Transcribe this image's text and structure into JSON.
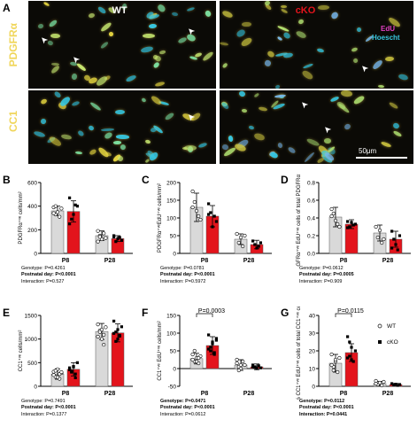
{
  "panel_a": {
    "label": "A",
    "wt_label": "WT",
    "cko_label": "cKO",
    "edu_label": "EdU",
    "hoescht_label": "Hoescht",
    "row1_label": "PDGFRα",
    "row2_label": "CC1",
    "scale_bar": "50μm",
    "colors": {
      "wt": "#ffffff",
      "cko": "#e3141c",
      "edu": "#e040c0",
      "hoescht": "#38c8e0",
      "marker": "#f0d65a"
    }
  },
  "charts": [
    {
      "id": "B",
      "label": "B",
      "ylabel": "PDGFRα⁺ᵛᵉ cells/mm²",
      "yticks": [
        "0",
        "200",
        "400",
        "600"
      ],
      "xlabels": [
        "P8",
        "P28"
      ],
      "stats": [
        {
          "prefix": "Genotype: ",
          "value": "P=0.4261",
          "bold": false
        },
        {
          "prefix": "Postnatal day: ",
          "value": "P<0.0001",
          "bold": true
        },
        {
          "prefix": "Interaction: ",
          "value": "P=0.527",
          "bold": false
        }
      ],
      "comparison": null
    },
    {
      "id": "C",
      "label": "C",
      "ylabel": "PDGFRα⁺ᵛᵉEdU⁺ᵛᵉ cells/mm²",
      "yticks": [
        "0",
        "50",
        "100",
        "150",
        "200"
      ],
      "xlabels": [
        "P8",
        "P28"
      ],
      "stats": [
        {
          "prefix": "Genotype: ",
          "value": "P=0.0781",
          "bold": false
        },
        {
          "prefix": "Postnatal day: ",
          "value": "P<0.0001",
          "bold": true
        },
        {
          "prefix": "Interaction: ",
          "value": "P=0.5972",
          "bold": false
        }
      ],
      "comparison": null
    },
    {
      "id": "D",
      "label": "D",
      "ylabel": "% PDGFRα⁺ᵛᵉ EdU⁺ᵛᵉ cells of total PDGFRα⁺ᵛᵉ cells",
      "yticks": [
        "0.0",
        "0.2",
        "0.4",
        "0.6",
        "0.8"
      ],
      "xlabels": [
        "P8",
        "P28"
      ],
      "stats": [
        {
          "prefix": "Genotype: ",
          "value": "P=0.0612",
          "bold": false
        },
        {
          "prefix": "Postnatal day: ",
          "value": "P=0.0005",
          "bold": true
        },
        {
          "prefix": "Interaction: ",
          "value": "P=0.909",
          "bold": false
        }
      ],
      "comparison": null
    },
    {
      "id": "E",
      "label": "E",
      "ylabel": "CC1⁺ᵛᵉ cells/mm²",
      "yticks": [
        "0",
        "500",
        "1000",
        "1500"
      ],
      "xlabels": [
        "P8",
        "P28"
      ],
      "stats": [
        {
          "prefix": "Genotype: ",
          "value": "P=0.7491",
          "bold": false
        },
        {
          "prefix": "Postnatal day: ",
          "value": "P<0.0001",
          "bold": true
        },
        {
          "prefix": "Interaction: ",
          "value": "P=0.1377",
          "bold": false
        }
      ],
      "comparison": null
    },
    {
      "id": "F",
      "label": "F",
      "ylabel": "CC1⁺ᵛᵉ EdU⁺ᵛᵉ cells/mm²",
      "yticks": [
        "-50",
        "0",
        "50",
        "100",
        "150"
      ],
      "xlabels": [
        "P8",
        "P28"
      ],
      "stats": [
        {
          "prefix": "Genotype: ",
          "value": "P=0.0471",
          "bold": true
        },
        {
          "prefix": "Postnatal day: ",
          "value": "P<0.0001",
          "bold": true
        },
        {
          "prefix": "Interaction: ",
          "value": "P=0.0612",
          "bold": false
        }
      ],
      "comparison": "P=0.0003"
    },
    {
      "id": "G",
      "label": "G",
      "ylabel": "% CC1⁺ᵛᵉ EdU⁺ᵛᵉ cells of total CC1⁺ᵛᵉ cells",
      "yticks": [
        "0",
        "10",
        "20",
        "30",
        "40"
      ],
      "xlabels": [
        "P8",
        "P28"
      ],
      "stats": [
        {
          "prefix": "Genotype: ",
          "value": "P=0.0112",
          "bold": true
        },
        {
          "prefix": "Postnatal day: ",
          "value": "P<0.0001",
          "bold": true
        },
        {
          "prefix": "Interaction: ",
          "value": "P=0.0441",
          "bold": true
        }
      ],
      "comparison": "P=0.0115",
      "legend": [
        "WT",
        "cKO"
      ]
    }
  ],
  "chart_data": [
    {
      "type": "bar",
      "panel": "B",
      "categories": [
        "P8",
        "P28"
      ],
      "ylim": [
        0,
        600
      ],
      "series": [
        {
          "name": "WT",
          "values": [
            360,
            150
          ],
          "errors": [
            40,
            40
          ],
          "points": [
            [
              390,
              330,
              350,
              310,
              380,
              340,
              400
            ],
            [
              190,
              150,
              120,
              170,
              130,
              100,
              140
            ]
          ]
        },
        {
          "name": "cKO",
          "values": [
            355,
            125
          ],
          "errors": [
            90,
            25
          ],
          "points": [
            [
              470,
              290,
              330,
              410,
              400,
              250
            ],
            [
              150,
              100,
              125,
              135,
              110,
              140
            ]
          ]
        }
      ]
    },
    {
      "type": "bar",
      "panel": "C",
      "categories": [
        "P8",
        "P28"
      ],
      "ylim": [
        0,
        200
      ],
      "series": [
        {
          "name": "WT",
          "values": [
            130,
            40
          ],
          "errors": [
            40,
            15
          ],
          "points": [
            [
              175,
              145,
              120,
              105,
              95,
              130
            ],
            [
              55,
              30,
              45,
              20,
              50
            ]
          ]
        },
        {
          "name": "cKO",
          "values": [
            105,
            25
          ],
          "errors": [
            30,
            12
          ],
          "points": [
            [
              140,
              115,
              75,
              105,
              90,
              110
            ],
            [
              35,
              25,
              15,
              20,
              30
            ]
          ]
        }
      ]
    },
    {
      "type": "bar",
      "panel": "D",
      "categories": [
        "P8",
        "P28"
      ],
      "ylim": [
        0,
        0.8
      ],
      "series": [
        {
          "name": "WT",
          "values": [
            0.41,
            0.23
          ],
          "errors": [
            0.11,
            0.09
          ],
          "points": [
            [
              0.5,
              0.45,
              0.37,
              0.33,
              0.3,
              0.42
            ],
            [
              0.3,
              0.18,
              0.26,
              0.12,
              0.16
            ]
          ]
        },
        {
          "name": "cKO",
          "values": [
            0.33,
            0.16
          ],
          "errors": [
            0.05,
            0.09
          ],
          "points": [
            [
              0.36,
              0.3,
              0.35,
              0.32,
              0.33,
              0.29
            ],
            [
              0.25,
              0.16,
              0.1,
              0.04,
              0.2,
              0.06
            ]
          ]
        }
      ]
    },
    {
      "type": "bar",
      "panel": "E",
      "categories": [
        "P8",
        "P28"
      ],
      "ylim": [
        0,
        1500
      ],
      "series": [
        {
          "name": "WT",
          "values": [
            260,
            1160
          ],
          "errors": [
            110,
            170
          ],
          "points": [
            [
              310,
              200,
              360,
              160,
              280,
              240,
              330,
              190,
              260,
              300
            ],
            [
              1310,
              1180,
              1000,
              1090,
              1250,
              1050,
              1150,
              1200,
              880
            ]
          ]
        },
        {
          "name": "cKO",
          "values": [
            360,
            1130
          ],
          "errors": [
            140,
            190
          ],
          "points": [
            [
              390,
              320,
              420,
              260,
              500,
              350,
              300,
              410,
              180
            ],
            [
              1380,
              1150,
              1000,
              1060,
              1260,
              1120,
              950,
              1200,
              1080
            ]
          ]
        }
      ]
    },
    {
      "type": "bar",
      "panel": "F",
      "categories": [
        "P8",
        "P28"
      ],
      "ylim": [
        -50,
        150
      ],
      "series": [
        {
          "name": "WT",
          "values": [
            28,
            10
          ],
          "errors": [
            15,
            15
          ],
          "points": [
            [
              40,
              20,
              30,
              15,
              35,
              25,
              50,
              20,
              30
            ],
            [
              15,
              5,
              0,
              20,
              10,
              25,
              -5,
              10
            ]
          ]
        },
        {
          "name": "cKO",
          "values": [
            65,
            5
          ],
          "errors": [
            25,
            8
          ],
          "points": [
            [
              95,
              60,
              75,
              45,
              80,
              55,
              50,
              70,
              40,
              85
            ],
            [
              10,
              5,
              0,
              8,
              2,
              5,
              3
            ]
          ]
        }
      ]
    },
    {
      "type": "bar",
      "panel": "G",
      "categories": [
        "P8",
        "P28"
      ],
      "ylim": [
        0,
        40
      ],
      "series": [
        {
          "name": "WT",
          "values": [
            13,
            1.5
          ],
          "errors": [
            5,
            1.2
          ],
          "points": [
            [
              18,
              11,
              14,
              8,
              16,
              12,
              9,
              15
            ],
            [
              3,
              1,
              2,
              0.5,
              2.5,
              1.5
            ]
          ]
        },
        {
          "name": "cKO",
          "values": [
            19,
            1
          ],
          "errors": [
            5,
            0.6
          ],
          "points": [
            [
              28,
              17,
              22,
              14,
              20,
              16,
              25,
              15
            ],
            [
              1.5,
              0.8,
              1.2,
              0.5,
              1
            ]
          ]
        }
      ]
    }
  ]
}
